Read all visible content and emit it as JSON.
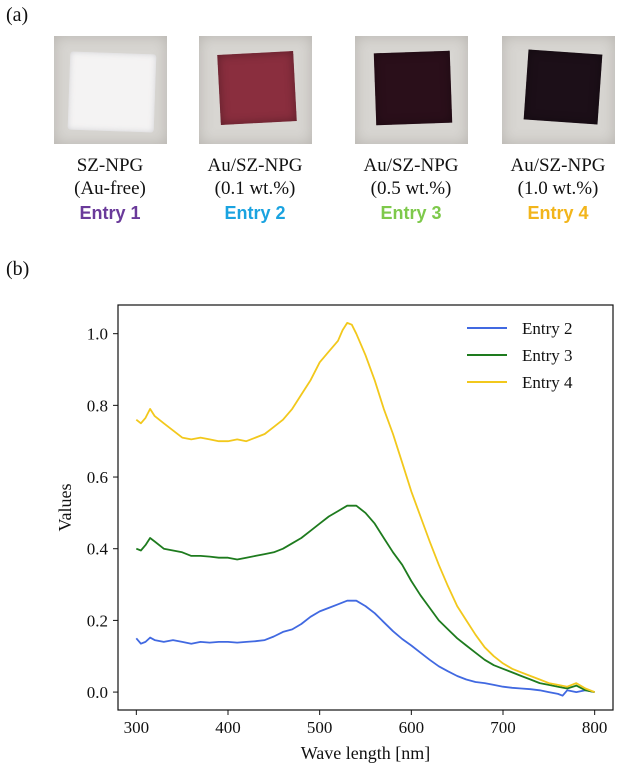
{
  "panels": {
    "a_label": "(a)",
    "b_label": "(b)"
  },
  "samples": [
    {
      "name": "SZ-NPG",
      "condition": "(Au-free)",
      "entry": "Entry 1",
      "entry_color": "#6a3a9a",
      "chip_color": "#f4f3f3"
    },
    {
      "name": "Au/SZ-NPG",
      "condition": "(0.1 wt.%)",
      "entry": "Entry 2",
      "entry_color": "#1aa3e0",
      "chip_color": "#8a2e3e"
    },
    {
      "name": "Au/SZ-NPG",
      "condition": "(0.5 wt.%)",
      "entry": "Entry 3",
      "entry_color": "#7ec94b",
      "chip_color": "#2a0f1a"
    },
    {
      "name": "Au/SZ-NPG",
      "condition": "(1.0 wt.%)",
      "entry": "Entry 4",
      "entry_color": "#f2b51b",
      "chip_color": "#1c0f18"
    }
  ],
  "chart_data": {
    "type": "line",
    "xlabel": "Wave length [nm]",
    "ylabel": "Values",
    "xlim": [
      280,
      820
    ],
    "ylim": [
      -0.05,
      1.08
    ],
    "xticks": [
      300,
      400,
      500,
      600,
      700,
      800
    ],
    "yticks": [
      "0.0",
      "0.2",
      "0.4",
      "0.6",
      "0.8",
      "1.0"
    ],
    "legend_position": "top-right",
    "grid": false,
    "series": [
      {
        "name": "Entry 2",
        "color": "#4169e1",
        "x": [
          300,
          305,
          310,
          315,
          320,
          330,
          340,
          350,
          360,
          370,
          380,
          390,
          400,
          410,
          420,
          430,
          440,
          450,
          460,
          470,
          480,
          490,
          500,
          510,
          520,
          530,
          540,
          550,
          560,
          570,
          580,
          590,
          600,
          610,
          620,
          630,
          640,
          650,
          660,
          670,
          680,
          690,
          700,
          710,
          720,
          730,
          740,
          750,
          760,
          765,
          770,
          780,
          790,
          800
        ],
        "y": [
          0.15,
          0.135,
          0.14,
          0.152,
          0.145,
          0.14,
          0.145,
          0.14,
          0.135,
          0.14,
          0.138,
          0.14,
          0.14,
          0.138,
          0.14,
          0.142,
          0.145,
          0.155,
          0.168,
          0.175,
          0.19,
          0.21,
          0.225,
          0.235,
          0.245,
          0.255,
          0.255,
          0.24,
          0.22,
          0.195,
          0.17,
          0.148,
          0.13,
          0.11,
          0.09,
          0.072,
          0.058,
          0.045,
          0.035,
          0.028,
          0.025,
          0.02,
          0.015,
          0.012,
          0.01,
          0.008,
          0.005,
          0.0,
          -0.005,
          -0.01,
          0.005,
          0.0,
          0.005,
          0.0
        ]
      },
      {
        "name": "Entry 3",
        "color": "#1e7b1e",
        "x": [
          300,
          305,
          310,
          315,
          320,
          330,
          340,
          350,
          360,
          370,
          380,
          390,
          400,
          410,
          420,
          430,
          440,
          450,
          460,
          470,
          480,
          490,
          500,
          510,
          520,
          530,
          540,
          550,
          560,
          570,
          580,
          590,
          600,
          610,
          620,
          630,
          640,
          650,
          660,
          670,
          680,
          690,
          700,
          710,
          720,
          730,
          740,
          750,
          760,
          770,
          780,
          790,
          800
        ],
        "y": [
          0.4,
          0.395,
          0.41,
          0.43,
          0.42,
          0.4,
          0.395,
          0.39,
          0.38,
          0.38,
          0.378,
          0.375,
          0.375,
          0.37,
          0.375,
          0.38,
          0.385,
          0.39,
          0.4,
          0.415,
          0.43,
          0.45,
          0.47,
          0.49,
          0.505,
          0.52,
          0.52,
          0.5,
          0.47,
          0.43,
          0.39,
          0.355,
          0.31,
          0.27,
          0.235,
          0.2,
          0.175,
          0.15,
          0.13,
          0.11,
          0.09,
          0.075,
          0.065,
          0.055,
          0.045,
          0.035,
          0.025,
          0.02,
          0.015,
          0.01,
          0.018,
          0.005,
          0.0
        ]
      },
      {
        "name": "Entry 4",
        "color": "#f2c81c",
        "x": [
          300,
          305,
          310,
          315,
          320,
          330,
          340,
          350,
          360,
          370,
          380,
          390,
          400,
          410,
          420,
          430,
          440,
          450,
          460,
          470,
          480,
          490,
          500,
          510,
          520,
          525,
          530,
          535,
          540,
          550,
          560,
          570,
          580,
          590,
          600,
          610,
          620,
          630,
          640,
          650,
          660,
          670,
          680,
          690,
          700,
          710,
          720,
          730,
          740,
          750,
          760,
          770,
          780,
          790,
          800
        ],
        "y": [
          0.76,
          0.75,
          0.765,
          0.79,
          0.77,
          0.75,
          0.73,
          0.71,
          0.705,
          0.71,
          0.705,
          0.7,
          0.7,
          0.705,
          0.7,
          0.71,
          0.72,
          0.74,
          0.76,
          0.79,
          0.83,
          0.87,
          0.92,
          0.95,
          0.98,
          1.01,
          1.03,
          1.025,
          1.0,
          0.94,
          0.87,
          0.79,
          0.72,
          0.64,
          0.56,
          0.49,
          0.42,
          0.355,
          0.295,
          0.24,
          0.2,
          0.16,
          0.125,
          0.1,
          0.08,
          0.065,
          0.055,
          0.045,
          0.035,
          0.025,
          0.02,
          0.015,
          0.025,
          0.01,
          0.0
        ]
      }
    ]
  }
}
